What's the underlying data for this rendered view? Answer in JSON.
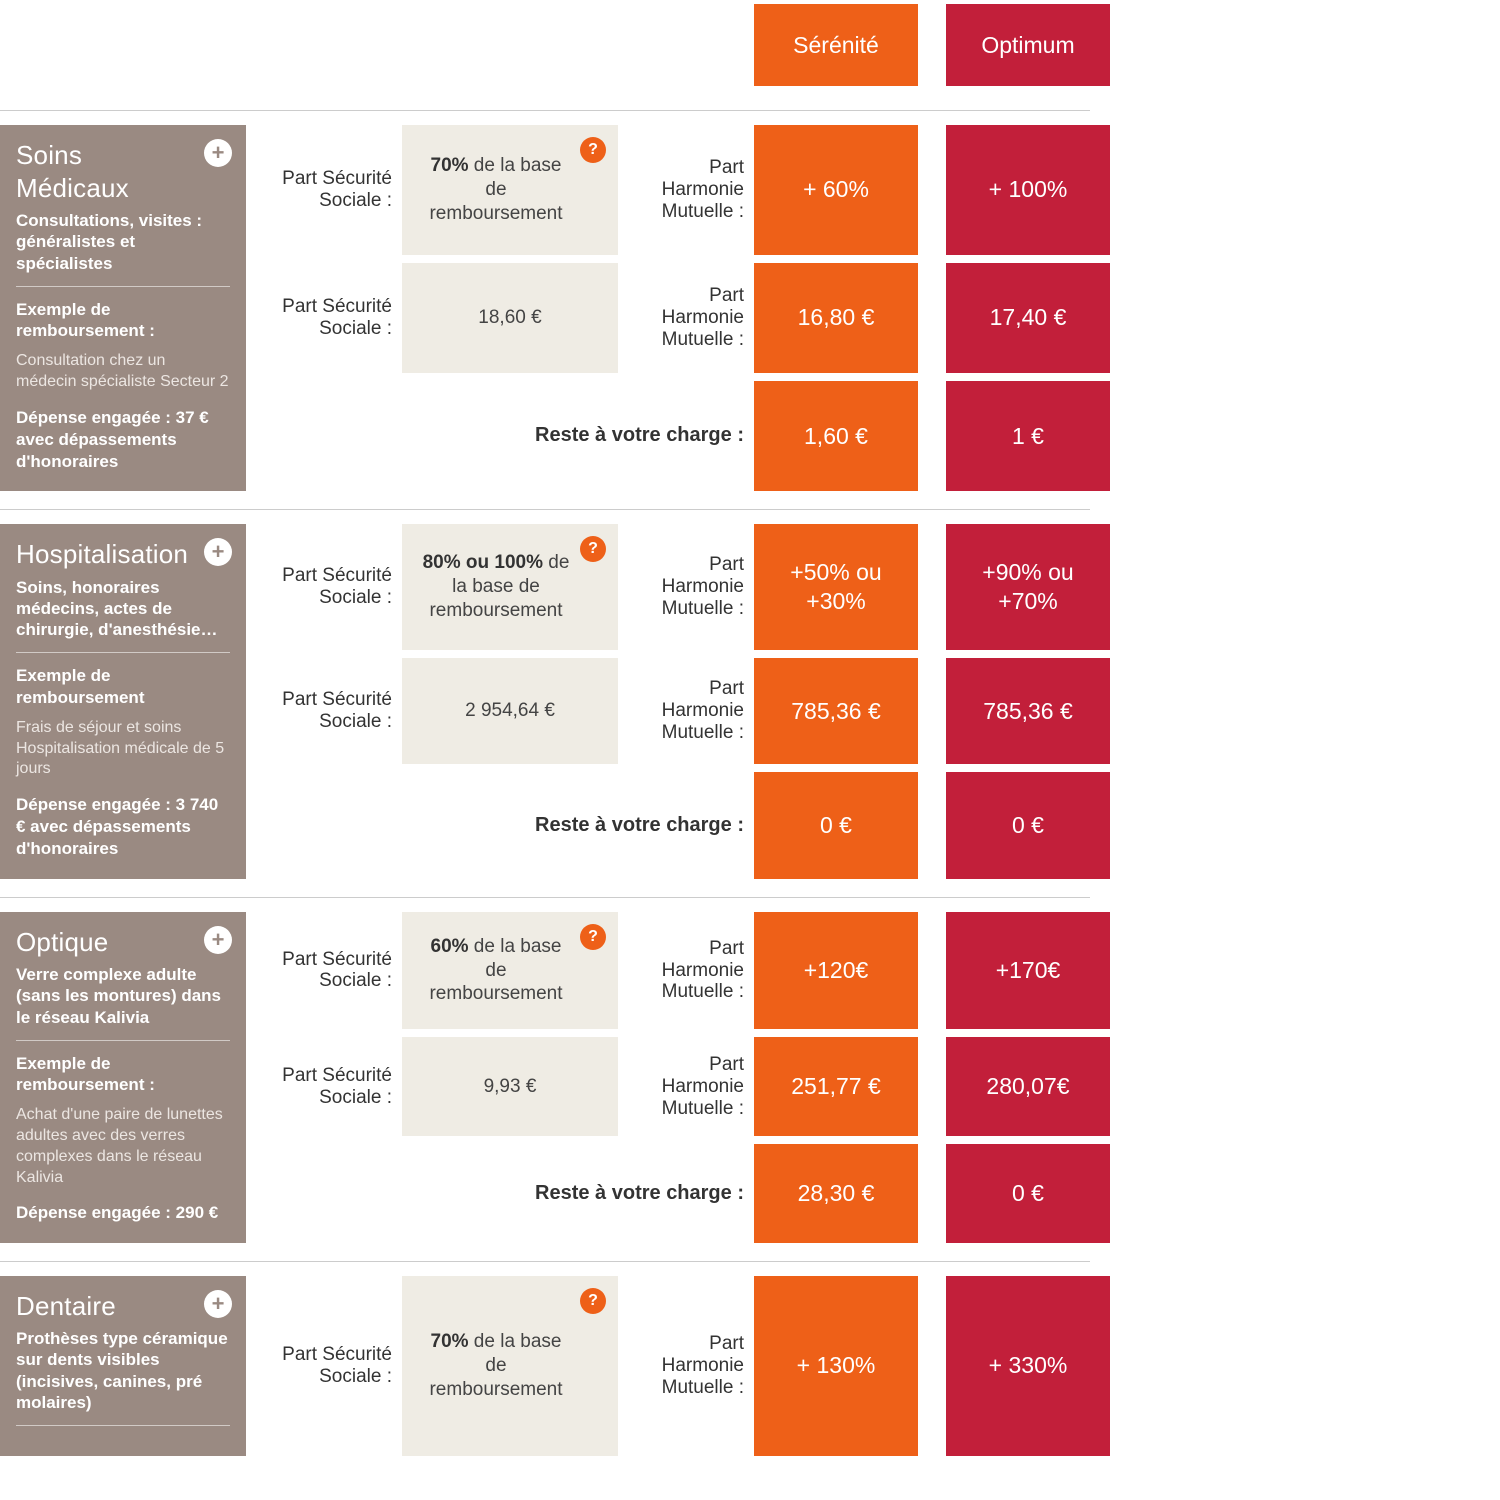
{
  "colors": {
    "side": "#9a8a82",
    "grey": "#efece4",
    "serenite": "#ee6018",
    "optimum": "#c21f3a"
  },
  "plans": {
    "serenite_label": "Sérénité",
    "optimum_label": "Optimum"
  },
  "labels": {
    "part_ss": "Part Sécurité Sociale :",
    "part_hm": "Part Harmonie Mutuelle :",
    "reste": "Reste à votre charge :"
  },
  "sections": [
    {
      "title": "Soins Médicaux",
      "subtitle": "Consultations, visites : généralistes et spécialistes",
      "example_title": "Exemple de remboursement :",
      "example_body": "Consultation chez un médecin spécialiste Secteur 2",
      "depense": "Dépense engagée : 37 € avec dépassements d'honoraires",
      "ss_pct_bold": "70%",
      "ss_pct_rest": " de la base de remboursement",
      "ss_amount": "18,60 €",
      "serenite_pct": "+ 60%",
      "optimum_pct": "+ 100%",
      "serenite_amount": "16,80 €",
      "optimum_amount": "17,40 €",
      "serenite_reste": "1,60 €",
      "optimum_reste": "1 €"
    },
    {
      "title": "Hospitalisation",
      "subtitle": "Soins, honoraires médecins, actes de chirurgie, d'anesthésie…",
      "example_title": "Exemple de remboursement",
      "example_body": "Frais de séjour et soins Hospitalisation médicale de 5 jours",
      "depense": "Dépense engagée : 3 740 € avec dépassements d'honoraires",
      "ss_pct_bold": "80% ou 100%",
      "ss_pct_rest": " de la base de remboursement",
      "ss_amount": "2 954,64 €",
      "serenite_pct": "+50% ou +30%",
      "optimum_pct": "+90% ou +70%",
      "serenite_amount": "785,36 €",
      "optimum_amount": "785,36 €",
      "serenite_reste": "0 €",
      "optimum_reste": "0 €"
    },
    {
      "title": "Optique",
      "subtitle": "Verre complexe adulte (sans les montures) dans le réseau Kalivia",
      "example_title": "Exemple de remboursement :",
      "example_body": "Achat d'une paire de lunettes adultes avec des verres complexes dans le réseau Kalivia",
      "depense": "Dépense engagée : 290 €",
      "ss_pct_bold": "60%",
      "ss_pct_rest": " de la base de remboursement",
      "ss_amount": "9,93 €",
      "serenite_pct": "+120€",
      "optimum_pct": "+170€",
      "serenite_amount": "251,77 €",
      "optimum_amount": "280,07€",
      "serenite_reste": "28,30 €",
      "optimum_reste": "0 €"
    },
    {
      "title": "Dentaire",
      "subtitle": "Prothèses type céramique sur dents visibles (incisives, canines, pré molaires)",
      "example_title": "",
      "example_body": "",
      "depense": "",
      "ss_pct_bold": "70%",
      "ss_pct_rest": " de la base de remboursement",
      "ss_amount": "",
      "serenite_pct": "+ 130%",
      "optimum_pct": "+ 330%",
      "serenite_amount": "",
      "optimum_amount": "",
      "serenite_reste": "",
      "optimum_reste": ""
    }
  ]
}
